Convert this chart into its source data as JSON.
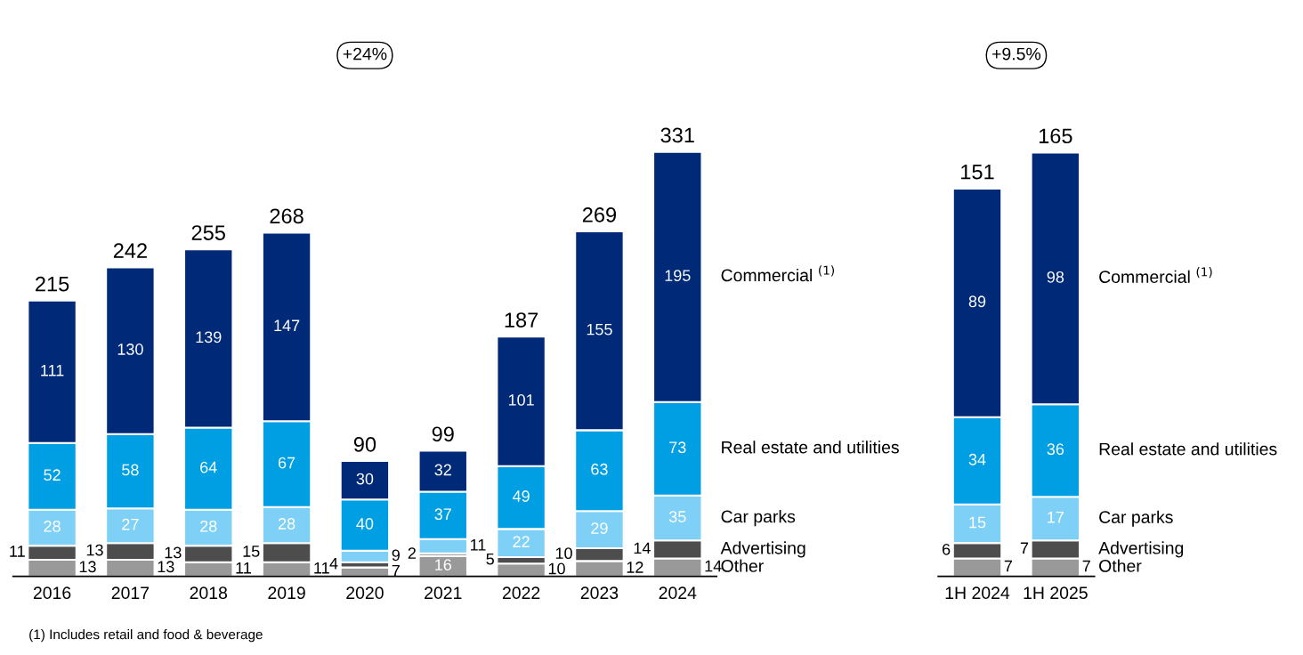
{
  "chart_data": [
    {
      "type": "bar",
      "stacked": true,
      "legend": "right",
      "data_labels": true,
      "categories": [
        "2016",
        "2017",
        "2018",
        "2019",
        "2020",
        "2021",
        "2022",
        "2023",
        "2024"
      ],
      "series": [
        {
          "name": "Other",
          "color": "#999999",
          "values": [
            13,
            13,
            11,
            11,
            7,
            16,
            10,
            12,
            14
          ]
        },
        {
          "name": "Advertising",
          "color": "#4d4d4d",
          "values": [
            11,
            13,
            13,
            15,
            4,
            2,
            5,
            10,
            14
          ]
        },
        {
          "name": "Car parks",
          "color": "#7fd0f7",
          "values": [
            28,
            27,
            28,
            28,
            9,
            11,
            22,
            29,
            35
          ]
        },
        {
          "name": "Real estate and utilities",
          "color": "#009fe3",
          "values": [
            52,
            58,
            64,
            67,
            40,
            37,
            49,
            63,
            73
          ]
        },
        {
          "name": "Commercial $^{(1)}$",
          "color": "#002a77",
          "values": [
            111,
            130,
            139,
            147,
            30,
            32,
            101,
            155,
            195
          ]
        }
      ],
      "totals": [
        "215",
        "242",
        "255",
        "268",
        "90",
        "99",
        "187",
        "269",
        "331"
      ],
      "annotations": [
        "+24%",
        "(1) Includes retail and food & beverage"
      ]
    },
    {
      "type": "bar",
      "stacked": true,
      "legend": "right",
      "data_labels": true,
      "categories": [
        "1H 2024",
        "1H 2025"
      ],
      "series": [
        {
          "name": "Other",
          "color": "#999999",
          "values": [
            7,
            7
          ]
        },
        {
          "name": "Advertising",
          "color": "#4d4d4d",
          "values": [
            6,
            7
          ]
        },
        {
          "name": "Car parks",
          "color": "#7fd0f7",
          "values": [
            15,
            17
          ]
        },
        {
          "name": "Real estate and utilities",
          "color": "#009fe3",
          "values": [
            34,
            36
          ]
        },
        {
          "name": "Commercial $^{(1)}$",
          "color": "#002a77",
          "values": [
            89,
            98
          ]
        }
      ],
      "totals": [
        "151",
        "165"
      ],
      "annotations": [
        "+9.5%"
      ]
    }
  ]
}
